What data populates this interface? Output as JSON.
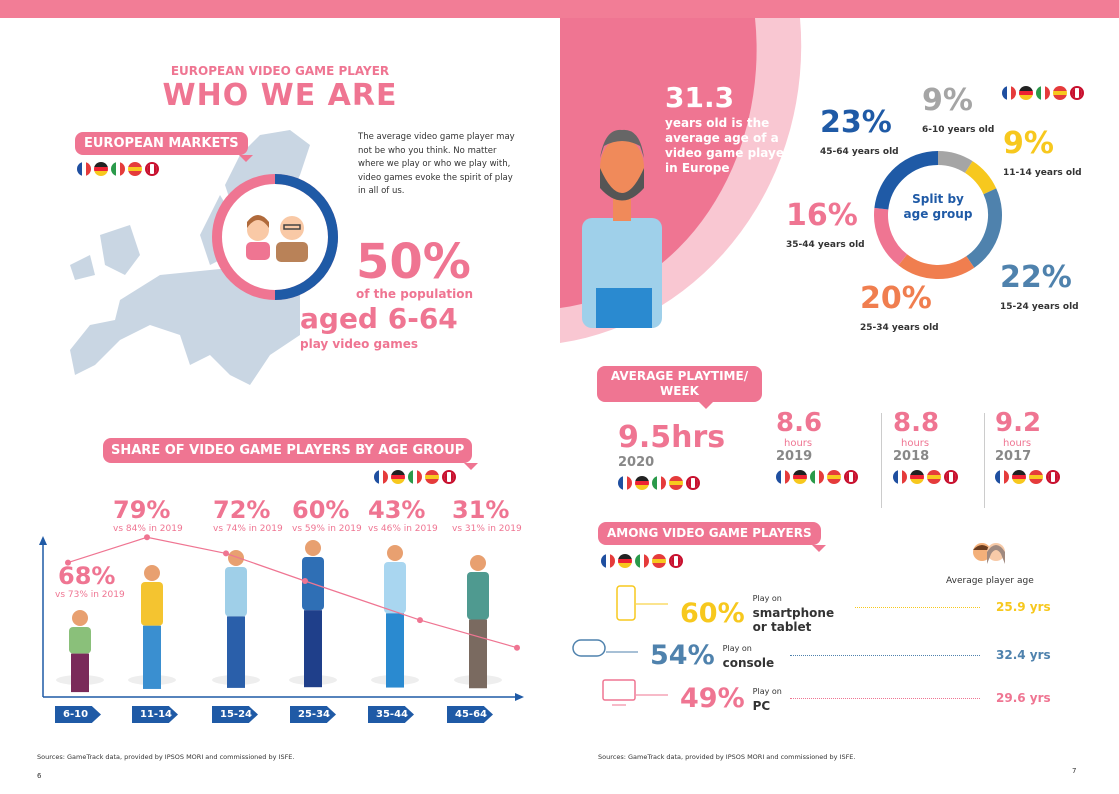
{
  "colors": {
    "pink": "#ef7592",
    "blue": "#1f5aa6",
    "steel": "#4f82ad",
    "yellow": "#f7c81e",
    "orange": "#f07e4f",
    "gray": "#a5a5a5",
    "map": "#c9d6e3"
  },
  "left": {
    "supertitle": "EUROPEAN VIDEO GAME PLAYER",
    "title": "WHO WE ARE",
    "markets_label": "EUROPEAN MARKETS",
    "markets_flags": [
      "fr",
      "de",
      "it",
      "es",
      "uk"
    ],
    "intro": "The average video game player may not be who you think. No matter where we play or who we play with, video games evoke the spirit of play in all of us.",
    "population_share": 50,
    "big_pct": "50%",
    "pop_line1": "of the population",
    "pop_line2": "aged 6-64",
    "pop_line3": "play video games",
    "share_title": "SHARE OF VIDEO GAME PLAYERS BY AGE GROUP",
    "share_flags": [
      "fr",
      "de",
      "it",
      "es",
      "uk"
    ],
    "sources": "Sources: GameTrack data, provided by IPSOS MORI and commissioned by ISFE.",
    "page": "6"
  },
  "chart_data": {
    "type": "line",
    "categories": [
      "6-10",
      "11-14",
      "15-24",
      "25-34",
      "35-44",
      "45-64"
    ],
    "values": [
      68,
      79,
      72,
      60,
      43,
      31
    ],
    "labels": [
      "68%",
      "79%",
      "72%",
      "60%",
      "43%",
      "31%"
    ],
    "comparisons": [
      "vs 73% in 2019",
      "vs 84% in 2019",
      "vs 74% in 2019",
      "vs 59% in 2019",
      "vs 46% in 2019",
      "vs 31% in 2019"
    ],
    "title": "SHARE OF VIDEO GAME PLAYERS BY AGE GROUP"
  },
  "right": {
    "avg_age": "31.3",
    "avg_age_text": "years old is the average age of a video game player in Europe",
    "donut_center": "Split by age group",
    "donut_flags": [
      "fr",
      "de",
      "it",
      "es",
      "uk"
    ],
    "donut": [
      {
        "label": "6-10 years old",
        "pct": "9%",
        "value": 9,
        "color": "#a5a5a5"
      },
      {
        "label": "11-14 years old",
        "pct": "9%",
        "value": 9,
        "color": "#f7c81e"
      },
      {
        "label": "15-24 years old",
        "pct": "22%",
        "value": 22,
        "color": "#4f82ad"
      },
      {
        "label": "25-34 years old",
        "pct": "20%",
        "value": 20,
        "color": "#f07e4f"
      },
      {
        "label": "35-44 years old",
        "pct": "16%",
        "value": 16,
        "color": "#ef7592"
      },
      {
        "label": "45-64 years old",
        "pct": "23%",
        "value": 23,
        "color": "#1f5aa6"
      }
    ],
    "playtime_title": "AVERAGE PLAYTIME/ WEEK",
    "playtime": [
      {
        "value": "9.5hrs",
        "year": "2020",
        "flags": [
          "fr",
          "de",
          "it",
          "es",
          "uk"
        ]
      },
      {
        "value": "8.6",
        "unit": "hours",
        "year": "2019",
        "flags": [
          "fr",
          "de",
          "it",
          "es",
          "uk"
        ]
      },
      {
        "value": "8.8",
        "unit": "hours",
        "year": "2018",
        "flags": [
          "fr",
          "de",
          "es",
          "uk"
        ]
      },
      {
        "value": "9.2",
        "unit": "hours",
        "year": "2017",
        "flags": [
          "fr",
          "de",
          "es",
          "uk"
        ]
      }
    ],
    "among_title": "AMONG VIDEO GAME PLAYERS",
    "among_flags": [
      "fr",
      "de",
      "it",
      "es",
      "uk"
    ],
    "avg_player_age_label": "Average player age",
    "devices": [
      {
        "icon": "smartphone-icon",
        "pct": "60%",
        "pre": "Play on",
        "name": "smartphone or tablet",
        "age": "25.9 yrs",
        "color": "#f7c81e"
      },
      {
        "icon": "gamepad-icon",
        "pct": "54%",
        "pre": "Play on",
        "name": "console",
        "age": "32.4 yrs",
        "color": "#4f82ad"
      },
      {
        "icon": "monitor-icon",
        "pct": "49%",
        "pre": "Play on",
        "name": "PC",
        "age": "29.6 yrs",
        "color": "#ef7592"
      }
    ],
    "sources": "Sources: GameTrack data, provided by IPSOS MORI and commissioned by ISFE.",
    "page": "7"
  }
}
